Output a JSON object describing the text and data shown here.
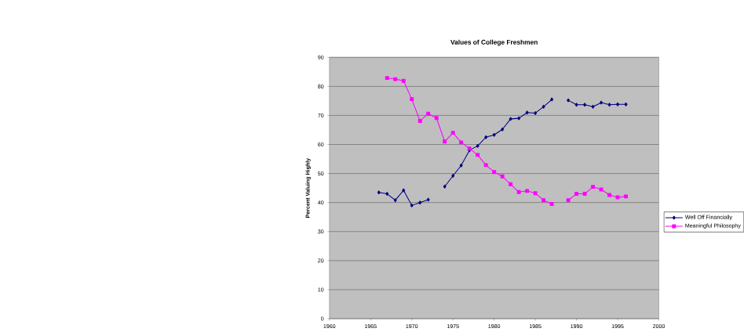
{
  "chart_data": {
    "type": "line",
    "title": "Values of College Freshmen",
    "ylabel": "Percent Valuing Highly",
    "x": [
      1966,
      1967,
      1968,
      1969,
      1970,
      1971,
      1972,
      1973,
      1974,
      1975,
      1976,
      1977,
      1978,
      1979,
      1980,
      1981,
      1982,
      1983,
      1984,
      1985,
      1986,
      1987,
      1988,
      1989,
      1990,
      1991,
      1992,
      1993,
      1994,
      1995,
      1996
    ],
    "series": [
      {
        "name": "Well Off Financially",
        "color": "#000080",
        "marker": "diamond",
        "values": [
          43.5,
          43,
          40.8,
          44.2,
          39,
          40,
          41,
          null,
          45.5,
          49.2,
          52.8,
          58,
          59.5,
          62.5,
          63.3,
          65.2,
          68.8,
          69,
          71,
          70.8,
          73,
          75.5,
          null,
          75.2,
          73.7,
          73.7,
          73,
          74.4,
          73.7,
          73.8,
          73.8
        ]
      },
      {
        "name": "Meaningful Philosophy",
        "color": "#ff00ff",
        "marker": "square",
        "values": [
          null,
          82.9,
          82.5,
          81.9,
          75.6,
          68.1,
          70.6,
          69.1,
          61,
          64,
          60.7,
          58.6,
          56.4,
          52.9,
          50.5,
          49,
          46.3,
          43.6,
          44,
          43.2,
          40.8,
          39.5,
          null,
          40.8,
          43,
          43,
          45.4,
          44.5,
          42.6,
          41.8,
          42.1
        ]
      }
    ],
    "xlim": [
      1960,
      2000
    ],
    "xticks": [
      1960,
      1965,
      1970,
      1975,
      1980,
      1985,
      1990,
      1995,
      2000
    ],
    "ylim": [
      0,
      90
    ],
    "yticks": [
      0,
      10,
      20,
      30,
      40,
      50,
      60,
      70,
      80,
      90
    ],
    "grid": "y",
    "legend": "right"
  }
}
